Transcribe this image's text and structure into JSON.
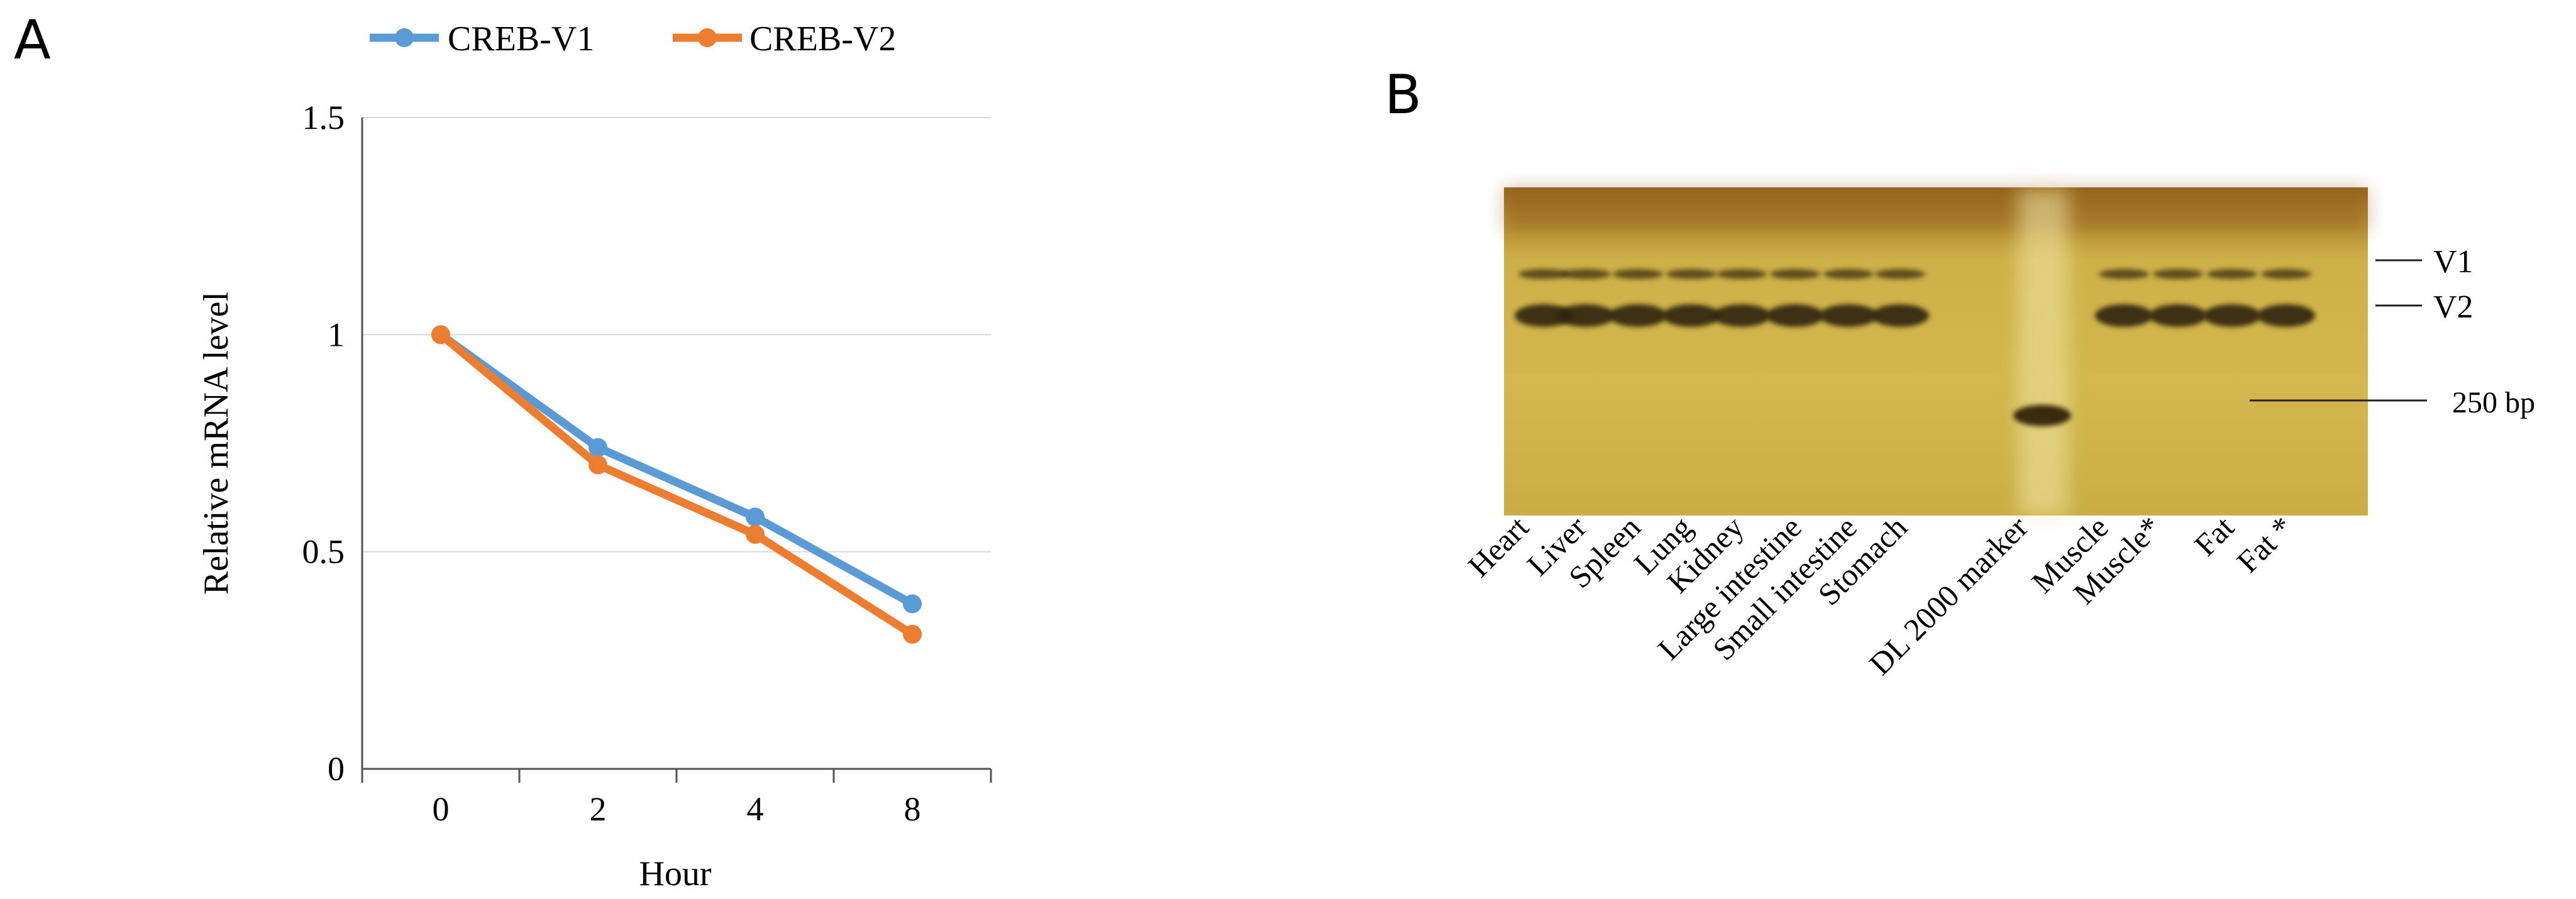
{
  "panels": {
    "a": {
      "letter": "A"
    },
    "b": {
      "letter": "B"
    }
  },
  "chart_data": [
    {
      "type": "line",
      "categories": [
        "0",
        "2",
        "4",
        "8"
      ],
      "series": [
        {
          "name": "CREB-V1",
          "color": "#5b9bd5",
          "values": [
            1.0,
            0.74,
            0.58,
            0.38
          ]
        },
        {
          "name": "CREB-V2",
          "color": "#ed7d31",
          "values": [
            1.0,
            0.7,
            0.54,
            0.31
          ]
        }
      ],
      "yticks": [
        "0",
        "0.5",
        "1",
        "1.5"
      ],
      "ytick_values": [
        0,
        0.5,
        1,
        1.5
      ],
      "ylim": [
        0,
        1.5
      ],
      "xlabel": "Hour",
      "ylabel": "Relative mRNA level",
      "grid": true,
      "legend": "top"
    }
  ],
  "gel": {
    "lanes": [
      "Heart",
      "Liver",
      "Spleen",
      "Lung",
      "Kidney",
      "Large intestine",
      "Small intestine",
      "Stomach",
      "DL 2000 marker",
      "Muscle",
      "Muscle*",
      "Fat",
      "Fat *"
    ],
    "band_labels": [
      "V1",
      "V2",
      "250 bp"
    ]
  }
}
